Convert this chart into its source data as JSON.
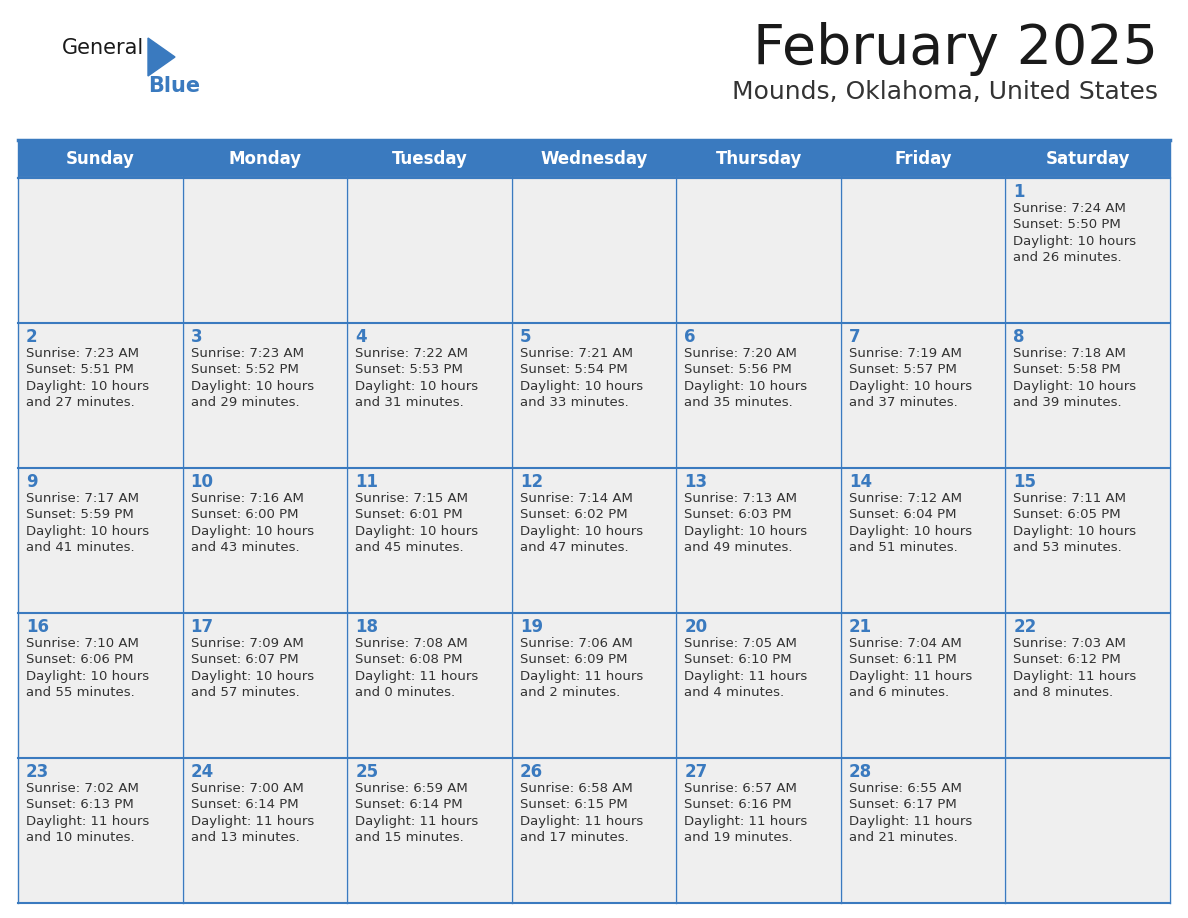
{
  "title": "February 2025",
  "subtitle": "Mounds, Oklahoma, United States",
  "header_bg_color": "#3a7abf",
  "header_text_color": "#ffffff",
  "cell_bg_color": "#efefef",
  "cell_text_color": "#333333",
  "border_color": "#3a7abf",
  "title_color": "#1a1a1a",
  "subtitle_color": "#333333",
  "day_number_color": "#3a7abf",
  "logo_text_color": "#1a1a1a",
  "logo_blue_color": "#3a7abf",
  "days_of_week": [
    "Sunday",
    "Monday",
    "Tuesday",
    "Wednesday",
    "Thursday",
    "Friday",
    "Saturday"
  ],
  "weeks": [
    [
      {
        "day": "",
        "sunrise": "",
        "sunset": "",
        "daylight": ""
      },
      {
        "day": "",
        "sunrise": "",
        "sunset": "",
        "daylight": ""
      },
      {
        "day": "",
        "sunrise": "",
        "sunset": "",
        "daylight": ""
      },
      {
        "day": "",
        "sunrise": "",
        "sunset": "",
        "daylight": ""
      },
      {
        "day": "",
        "sunrise": "",
        "sunset": "",
        "daylight": ""
      },
      {
        "day": "",
        "sunrise": "",
        "sunset": "",
        "daylight": ""
      },
      {
        "day": "1",
        "sunrise": "7:24 AM",
        "sunset": "5:50 PM",
        "daylight": "10 hours\nand 26 minutes."
      }
    ],
    [
      {
        "day": "2",
        "sunrise": "7:23 AM",
        "sunset": "5:51 PM",
        "daylight": "10 hours\nand 27 minutes."
      },
      {
        "day": "3",
        "sunrise": "7:23 AM",
        "sunset": "5:52 PM",
        "daylight": "10 hours\nand 29 minutes."
      },
      {
        "day": "4",
        "sunrise": "7:22 AM",
        "sunset": "5:53 PM",
        "daylight": "10 hours\nand 31 minutes."
      },
      {
        "day": "5",
        "sunrise": "7:21 AM",
        "sunset": "5:54 PM",
        "daylight": "10 hours\nand 33 minutes."
      },
      {
        "day": "6",
        "sunrise": "7:20 AM",
        "sunset": "5:56 PM",
        "daylight": "10 hours\nand 35 minutes."
      },
      {
        "day": "7",
        "sunrise": "7:19 AM",
        "sunset": "5:57 PM",
        "daylight": "10 hours\nand 37 minutes."
      },
      {
        "day": "8",
        "sunrise": "7:18 AM",
        "sunset": "5:58 PM",
        "daylight": "10 hours\nand 39 minutes."
      }
    ],
    [
      {
        "day": "9",
        "sunrise": "7:17 AM",
        "sunset": "5:59 PM",
        "daylight": "10 hours\nand 41 minutes."
      },
      {
        "day": "10",
        "sunrise": "7:16 AM",
        "sunset": "6:00 PM",
        "daylight": "10 hours\nand 43 minutes."
      },
      {
        "day": "11",
        "sunrise": "7:15 AM",
        "sunset": "6:01 PM",
        "daylight": "10 hours\nand 45 minutes."
      },
      {
        "day": "12",
        "sunrise": "7:14 AM",
        "sunset": "6:02 PM",
        "daylight": "10 hours\nand 47 minutes."
      },
      {
        "day": "13",
        "sunrise": "7:13 AM",
        "sunset": "6:03 PM",
        "daylight": "10 hours\nand 49 minutes."
      },
      {
        "day": "14",
        "sunrise": "7:12 AM",
        "sunset": "6:04 PM",
        "daylight": "10 hours\nand 51 minutes."
      },
      {
        "day": "15",
        "sunrise": "7:11 AM",
        "sunset": "6:05 PM",
        "daylight": "10 hours\nand 53 minutes."
      }
    ],
    [
      {
        "day": "16",
        "sunrise": "7:10 AM",
        "sunset": "6:06 PM",
        "daylight": "10 hours\nand 55 minutes."
      },
      {
        "day": "17",
        "sunrise": "7:09 AM",
        "sunset": "6:07 PM",
        "daylight": "10 hours\nand 57 minutes."
      },
      {
        "day": "18",
        "sunrise": "7:08 AM",
        "sunset": "6:08 PM",
        "daylight": "11 hours\nand 0 minutes."
      },
      {
        "day": "19",
        "sunrise": "7:06 AM",
        "sunset": "6:09 PM",
        "daylight": "11 hours\nand 2 minutes."
      },
      {
        "day": "20",
        "sunrise": "7:05 AM",
        "sunset": "6:10 PM",
        "daylight": "11 hours\nand 4 minutes."
      },
      {
        "day": "21",
        "sunrise": "7:04 AM",
        "sunset": "6:11 PM",
        "daylight": "11 hours\nand 6 minutes."
      },
      {
        "day": "22",
        "sunrise": "7:03 AM",
        "sunset": "6:12 PM",
        "daylight": "11 hours\nand 8 minutes."
      }
    ],
    [
      {
        "day": "23",
        "sunrise": "7:02 AM",
        "sunset": "6:13 PM",
        "daylight": "11 hours\nand 10 minutes."
      },
      {
        "day": "24",
        "sunrise": "7:00 AM",
        "sunset": "6:14 PM",
        "daylight": "11 hours\nand 13 minutes."
      },
      {
        "day": "25",
        "sunrise": "6:59 AM",
        "sunset": "6:14 PM",
        "daylight": "11 hours\nand 15 minutes."
      },
      {
        "day": "26",
        "sunrise": "6:58 AM",
        "sunset": "6:15 PM",
        "daylight": "11 hours\nand 17 minutes."
      },
      {
        "day": "27",
        "sunrise": "6:57 AM",
        "sunset": "6:16 PM",
        "daylight": "11 hours\nand 19 minutes."
      },
      {
        "day": "28",
        "sunrise": "6:55 AM",
        "sunset": "6:17 PM",
        "daylight": "11 hours\nand 21 minutes."
      },
      {
        "day": "",
        "sunrise": "",
        "sunset": "",
        "daylight": ""
      }
    ]
  ],
  "figsize": [
    11.88,
    9.18
  ],
  "dpi": 100
}
